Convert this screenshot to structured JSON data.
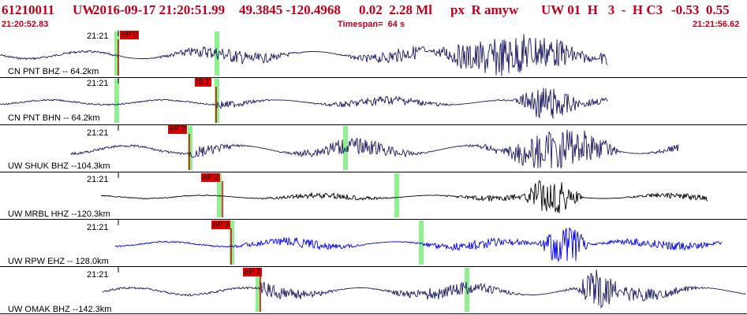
{
  "header": {
    "event_id": "61210011",
    "network": "UW",
    "datetime": "2016-09-17 21:20:51.99",
    "latlon": "49.3845 -120.4968",
    "depth_mag": "0.02  2.28 Ml",
    "flags": "px  R amyw",
    "review": "UW 01  H   3  -  H C3",
    "extra": "-0.53  0.55",
    "start_time": "21:20:52.83",
    "timespan": "Timespan=  64 s",
    "end_time": "21:21:56.62"
  },
  "colors": {
    "header_text": "#c0001a",
    "trace_dark": "#1a1a66",
    "trace_black": "#000000",
    "trace_blue": "#0000ee",
    "pick_box": "#e00000",
    "pick_line": "#d00000",
    "window_green": "#8ef08e"
  },
  "traces": [
    {
      "tick": "21:21",
      "station": "CN PNT BHZ -- 64.2km",
      "pick": "eP 0",
      "color": "trace_dark"
    },
    {
      "tick": "21:21",
      "station": "CN PNT BHN -- 64.2km",
      "pick": "iS 1",
      "color": "trace_dark"
    },
    {
      "tick": "21:21",
      "station": "UW SHUK BHZ --104.3km",
      "pick": "eP 2",
      "color": "trace_dark"
    },
    {
      "tick": "21:21",
      "station": "UW MRBL HHZ --120.3km",
      "pick": "eP 2",
      "color": "trace_black"
    },
    {
      "tick": "21:21",
      "station": "UW RPW EHZ -- 128.0km",
      "pick": "eP 3",
      "color": "trace_blue"
    },
    {
      "tick": "21:21",
      "station": "UW OMAK BHZ --142.3km",
      "pick": "eP 2",
      "color": "trace_dark"
    }
  ]
}
